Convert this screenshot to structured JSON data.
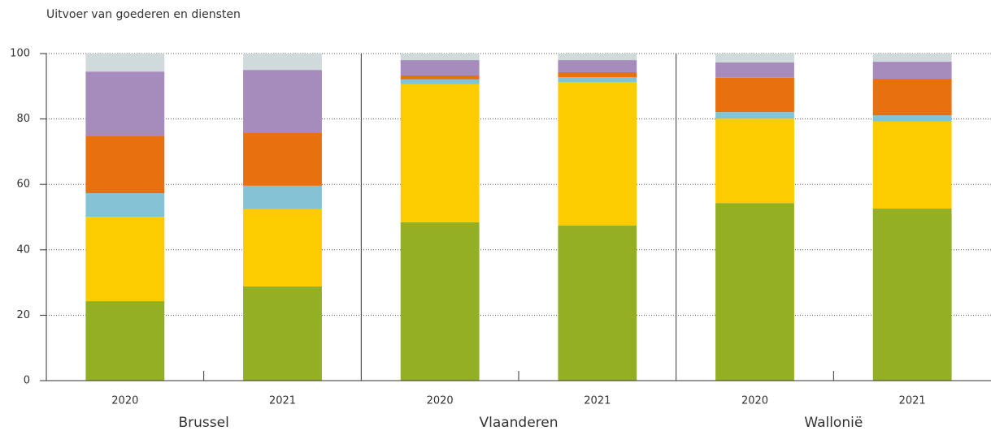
{
  "chart_data": {
    "type": "stacked_bar",
    "title": "Uitvoer van goederen en diensten",
    "groups": [
      "Brussel",
      "Vlaanderen",
      "Wallonië"
    ],
    "categories": [
      "2020",
      "2021",
      "2020",
      "2021",
      "2020",
      "2021"
    ],
    "series": [
      {
        "color": "#93b024",
        "values": [
          24.3,
          28.8,
          48.4,
          47.4,
          54.3,
          52.6
        ]
      },
      {
        "color": "#fdcc00",
        "values": [
          25.8,
          23.6,
          42.2,
          43.9,
          25.8,
          26.6
        ]
      },
      {
        "color": "#84c3d6",
        "values": [
          7.2,
          7.2,
          1.5,
          1.5,
          2.0,
          1.9
        ]
      },
      {
        "color": "#e8700e",
        "values": [
          17.6,
          16.3,
          1.2,
          1.5,
          10.5,
          11.2
        ]
      },
      {
        "color": "#a68bbd",
        "values": [
          19.6,
          19.1,
          4.7,
          3.7,
          4.7,
          5.2
        ]
      },
      {
        "color": "#d0dadb",
        "values": [
          5.5,
          5.0,
          2.0,
          2.0,
          2.7,
          2.5
        ]
      }
    ],
    "ylim": [
      0,
      100
    ],
    "yticks": [
      0,
      20,
      40,
      60,
      80,
      100
    ],
    "grid": true
  }
}
